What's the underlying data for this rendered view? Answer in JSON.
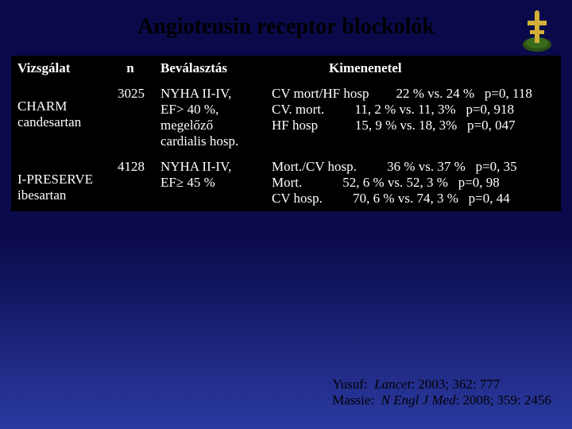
{
  "slide": {
    "background_gradient": {
      "top": "#0a0a4a",
      "bottom": "#2a3aa0"
    },
    "title": "Angiotensin receptor blockolók",
    "title_color": "#000000",
    "table_background": "#000000",
    "text_color": "#ffffff"
  },
  "emblem": {
    "cross_color": "#d4af37",
    "wreath_color": "#2d5016"
  },
  "headers": {
    "vizsgalat": "Vizsgálat",
    "n": "n",
    "bevalasztas": "Beválasztás",
    "kimenetel": "Kimenenetel"
  },
  "rows": [
    {
      "vizsgalat": "CHARM\ncandesartan",
      "n": "3025",
      "bevalasztas": "NYHA II-IV,\nEF> 40 %,\nmegelőző\ncardialis hosp.",
      "outcomes": [
        {
          "label": "CV mort/HF hosp",
          "values": "22 % vs. 24 %",
          "p": "p=0, 118"
        },
        {
          "label": "CV. mort.",
          "values": "11, 2 % vs. 11, 3%",
          "p": "p=0, 918"
        },
        {
          "label": "HF hosp",
          "values": "15, 9 % vs. 18, 3%",
          "p": "p=0, 047"
        }
      ]
    },
    {
      "vizsgalat": "I-PRESERVE\nibesartan",
      "n": "4128",
      "bevalasztas": "NYHA II-IV,\nEF≥ 45 %",
      "outcomes": [
        {
          "label": "Mort./CV hosp.",
          "values": "36 % vs. 37 %",
          "p": "p=0, 35"
        },
        {
          "label": "Mort.",
          "values": "52, 6 % vs. 52, 3 %",
          "p": "p=0, 98"
        },
        {
          "label": "CV hosp.",
          "values": "70, 6 % vs. 74, 3 %",
          "p": "p=0, 44"
        }
      ]
    }
  ],
  "references": [
    {
      "author": "Yusuf:  ",
      "journal": "Lancet",
      "cite": ": 2003; 362: 777"
    },
    {
      "author": "Massie:  ",
      "journal": "N Engl J Med",
      "cite": ": 2008; 359: 2456"
    }
  ]
}
